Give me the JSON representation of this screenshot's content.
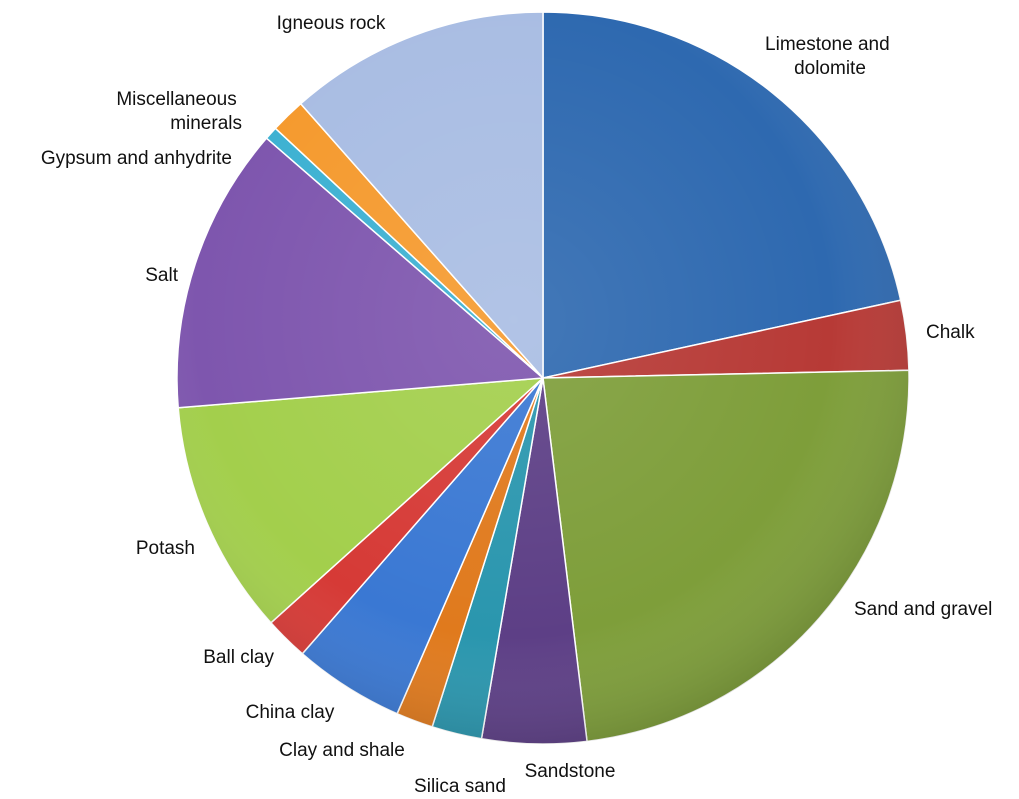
{
  "chart_data": {
    "type": "pie",
    "title": "",
    "start_angle_deg": 0,
    "direction": "clockwise",
    "slices": [
      {
        "name": "Limestone and dolomite",
        "value": 22.5,
        "color": "#2E69B0"
      },
      {
        "name": "Chalk",
        "value": 3.2,
        "color": "#B73A36"
      },
      {
        "name": "Sand and gravel",
        "value": 24.4,
        "color": "#7E9E3A"
      },
      {
        "name": "Sandstone",
        "value": 4.8,
        "color": "#5D3F86"
      },
      {
        "name": "Silica sand",
        "value": 2.3,
        "color": "#2A96AE"
      },
      {
        "name": "Clay and shale",
        "value": 1.7,
        "color": "#E07A1D"
      },
      {
        "name": "China clay",
        "value": 5.1,
        "color": "#3A78D3"
      },
      {
        "name": "Ball clay",
        "value": 2.0,
        "color": "#D63A36"
      },
      {
        "name": "Potash",
        "value": 10.8,
        "color": "#A3CF4C"
      },
      {
        "name": "Salt",
        "value": 13.2,
        "color": "#7E56AE"
      },
      {
        "name": "Gypsum and anhydrite",
        "value": 0.6,
        "color": "#3DB1D2"
      },
      {
        "name": "Miscellaneous minerals",
        "value": 1.6,
        "color": "#F59A2E"
      },
      {
        "name": "Igneous rock",
        "value": 12.0,
        "color": "#A9BDE3"
      }
    ]
  }
}
